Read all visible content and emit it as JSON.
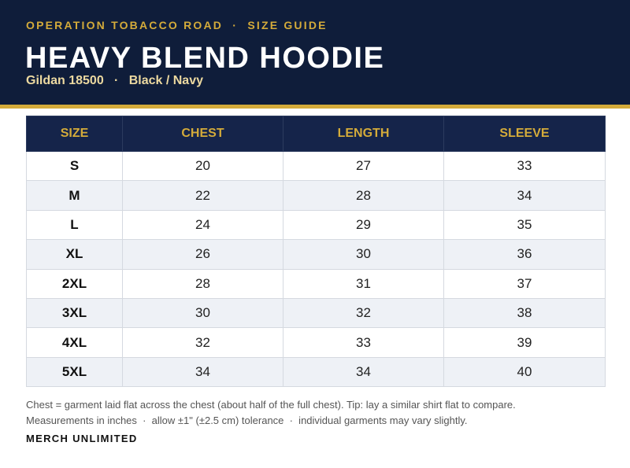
{
  "header": {
    "eyebrow": "OPERATION TOBACCO ROAD  ·  SIZE GUIDE",
    "title": "HEAVY BLEND HOODIE",
    "subtitle": "Gildan 18500   ·   Black / Navy"
  },
  "table": {
    "columns": [
      "SIZE",
      "CHEST",
      "LENGTH",
      "SLEEVE"
    ],
    "rows": [
      [
        "S",
        20,
        27,
        33
      ],
      [
        "M",
        22,
        28,
        34
      ],
      [
        "L",
        24,
        29,
        35
      ],
      [
        "XL",
        26,
        30,
        36
      ],
      [
        "2XL",
        28,
        31,
        37
      ],
      [
        "3XL",
        30,
        32,
        38
      ],
      [
        "4XL",
        32,
        33,
        39
      ],
      [
        "5XL",
        34,
        34,
        40
      ]
    ]
  },
  "notes": [
    "Chest = garment laid flat across the chest (about half of the full chest). Tip: lay a similar shirt flat to compare.",
    "Measurements in inches  ·  allow ±1\" (±2.5 cm) tolerance  ·  individual garments may vary slightly."
  ],
  "footer": "MERCH UNLIMITED"
}
